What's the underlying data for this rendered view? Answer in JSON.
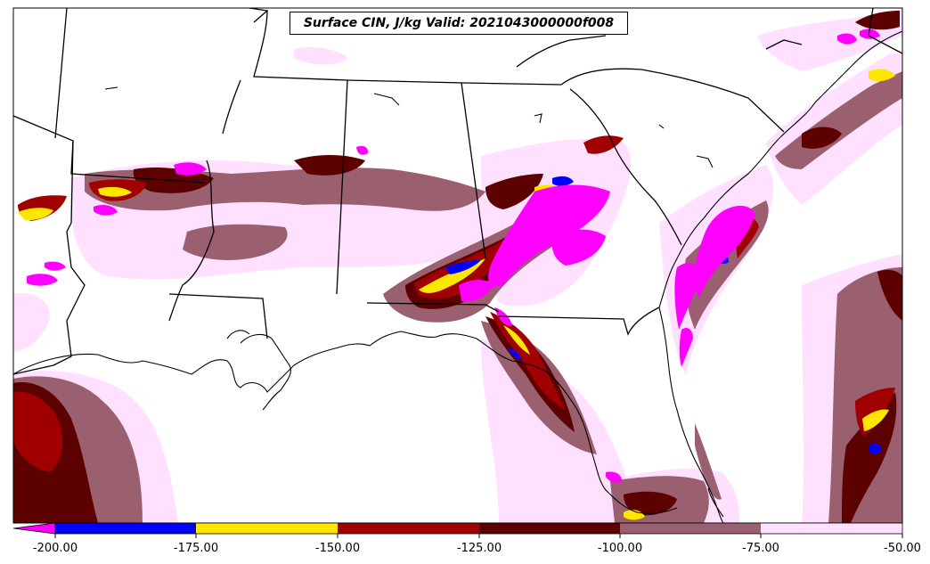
{
  "title": "Surface CIN, J/kg Valid: 2021043000000f008",
  "colorbar": {
    "ticks": [
      "-200.00",
      "-175.00",
      "-150.00",
      "-125.00",
      "-100.00",
      "-75.00",
      "-50.00"
    ],
    "colors": [
      "#ff00ff",
      "#0000ff",
      "#ffe600",
      "#a00000",
      "#5c0000",
      "#9b6070",
      "#ffe0ff"
    ],
    "extend": "min"
  },
  "legend_levels": [
    -200,
    -175,
    -150,
    -125,
    -100,
    -75,
    -50
  ],
  "map": {
    "projection": "Lambert Conformal",
    "region": "Southeastern United States and Gulf of Mexico",
    "coastline_color": "#000000"
  }
}
